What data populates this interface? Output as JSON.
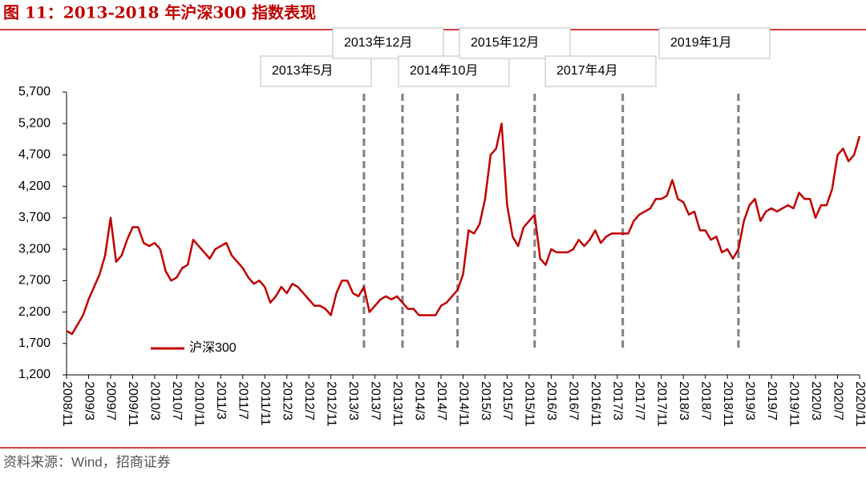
{
  "chart_data": {
    "type": "line",
    "title": "图 11：2013-2018 年沪深300 指数表现",
    "source": "资料来源：Wind，招商证券",
    "categories": [
      "2008/11",
      null,
      null,
      null,
      "2009/3",
      null,
      null,
      null,
      "2009/7",
      null,
      null,
      null,
      "2009/11",
      null,
      null,
      null,
      "2010/3",
      null,
      null,
      null,
      "2010/7",
      null,
      null,
      null,
      "2010/11",
      null,
      null,
      null,
      "2011/3",
      null,
      null,
      null,
      "2011/7",
      null,
      null,
      null,
      "2011/11",
      null,
      null,
      null,
      "2012/3",
      null,
      null,
      null,
      "2012/7",
      null,
      null,
      null,
      "2012/11",
      null,
      null,
      null,
      "2013/3",
      null,
      null,
      null,
      "2013/7",
      null,
      null,
      null,
      "2013/11",
      null,
      null,
      null,
      "2014/3",
      null,
      null,
      null,
      "2014/7",
      null,
      null,
      null,
      "2014/11",
      null,
      null,
      null,
      "2015/3",
      null,
      null,
      null,
      "2015/7",
      null,
      null,
      null,
      "2015/11",
      null,
      null,
      null,
      "2016/3",
      null,
      null,
      null,
      "2016/7",
      null,
      null,
      null,
      "2016/11",
      null,
      null,
      null,
      "2017/3",
      null,
      null,
      null,
      "2017/7",
      null,
      null,
      null,
      "2017/11",
      null,
      null,
      null,
      "2018/3",
      null,
      null,
      null,
      "2018/7",
      null,
      null,
      null,
      "2018/11",
      null,
      null,
      null,
      "2019/3",
      null,
      null,
      null,
      "2019/7",
      null,
      null,
      null,
      "2019/11",
      null,
      null,
      null,
      "2020/3",
      null,
      null,
      null,
      "2020/7",
      null,
      null,
      null,
      "2020/11"
    ],
    "series": [
      {
        "name": "沪深300",
        "color": "#c00000",
        "values": [
          1900,
          1850,
          2000,
          2150,
          2400,
          2600,
          2800,
          3100,
          3700,
          3000,
          3100,
          3350,
          3550,
          3550,
          3300,
          3250,
          3300,
          3200,
          2850,
          2700,
          2750,
          2900,
          2950,
          3350,
          3250,
          3150,
          3050,
          3200,
          3250,
          3300,
          3100,
          3000,
          2900,
          2750,
          2650,
          2700,
          2600,
          2350,
          2450,
          2600,
          2500,
          2650,
          2600,
          2500,
          2400,
          2300,
          2300,
          2250,
          2150,
          2500,
          2700,
          2700,
          2500,
          2450,
          2600,
          2200,
          2300,
          2400,
          2450,
          2400,
          2450,
          2350,
          2250,
          2250,
          2150,
          2150,
          2150,
          2150,
          2300,
          2350,
          2450,
          2550,
          2800,
          3500,
          3450,
          3600,
          4000,
          4700,
          4800,
          5200,
          3900,
          3400,
          3250,
          3550,
          3650,
          3750,
          3050,
          2950,
          3200,
          3150,
          3150,
          3150,
          3200,
          3350,
          3250,
          3350,
          3500,
          3300,
          3400,
          3450,
          3450,
          3450,
          3450,
          3650,
          3750,
          3800,
          3850,
          4000,
          4000,
          4050,
          4300,
          4000,
          3950,
          3750,
          3800,
          3500,
          3500,
          3350,
          3400,
          3150,
          3200,
          3050,
          3200,
          3650,
          3900,
          4000,
          3650,
          3800,
          3850,
          3800,
          3850,
          3900,
          3850,
          4100,
          4000,
          4000,
          3700,
          3900,
          3900,
          4150,
          4700,
          4800,
          4600,
          4700,
          5000
        ]
      }
    ],
    "ylim": [
      1200,
      5700
    ],
    "yticks": [
      {
        "value": 1200,
        "label": "1,200"
      },
      {
        "value": 1700,
        "label": "1,700"
      },
      {
        "value": 2200,
        "label": "2,200"
      },
      {
        "value": 2700,
        "label": "2,700"
      },
      {
        "value": 3200,
        "label": "3,200"
      },
      {
        "value": 3700,
        "label": "3,700"
      },
      {
        "value": 4200,
        "label": "4,200"
      },
      {
        "value": 4700,
        "label": "4,700"
      },
      {
        "value": 5200,
        "label": "5,200"
      },
      {
        "value": 5700,
        "label": "5,700"
      }
    ],
    "annotations": [
      {
        "text": "2013年5月",
        "x": 54
      },
      {
        "text": "2013年12月",
        "x": 61
      },
      {
        "text": "2014年10月",
        "x": 71
      },
      {
        "text": "2015年12月",
        "x": 85
      },
      {
        "text": "2017年4月",
        "x": 101
      },
      {
        "text": "2019年1月",
        "x": 122
      }
    ]
  }
}
